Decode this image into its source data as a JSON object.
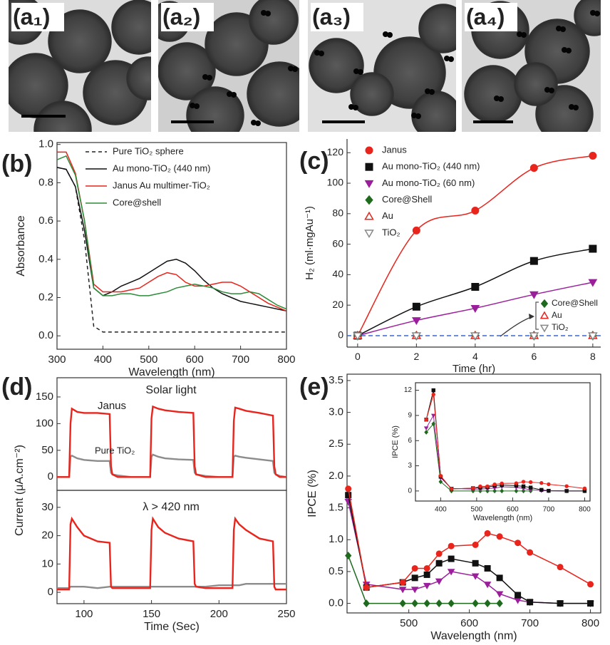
{
  "figure_labels": [
    "(a₁)",
    "(a₂)",
    "(a₃)",
    "(a₄)"
  ],
  "chart_data": [
    {
      "type": "line",
      "panel_label": "(b)",
      "xlabel": "Wavelength (nm)",
      "ylabel": "Absorbance",
      "xlim": [
        300,
        800
      ],
      "xticks": [
        300,
        400,
        500,
        600,
        700,
        800
      ],
      "ylim": [
        -0.07,
        1.01
      ],
      "yticks": [
        {
          "value": 0,
          "label": "0.0"
        },
        0.2,
        0.4,
        0.6,
        0.8,
        {
          "value": 1,
          "label": "1.0"
        }
      ],
      "legend_loc": "upper left",
      "x": [
        300,
        320,
        340,
        360,
        380,
        400,
        420,
        440,
        460,
        480,
        500,
        520,
        540,
        560,
        580,
        600,
        620,
        640,
        660,
        680,
        700,
        720,
        740,
        760,
        780,
        800
      ],
      "series": [
        {
          "name": "Pure TiO₂ sphere",
          "color": "#222222",
          "dash": "dashed",
          "values": [
            0.88,
            0.87,
            0.78,
            0.5,
            0.05,
            0.02,
            0.02,
            0.02,
            0.02,
            0.02,
            0.02,
            0.02,
            0.02,
            0.02,
            0.02,
            0.02,
            0.02,
            0.02,
            0.02,
            0.02,
            0.02,
            0.02,
            0.02,
            0.02,
            0.02,
            0.02
          ]
        },
        {
          "name": "Au mono-TiO₂ (440 nm)",
          "color": "#111111",
          "values": [
            0.88,
            0.87,
            0.78,
            0.55,
            0.25,
            0.21,
            0.23,
            0.26,
            0.28,
            0.3,
            0.33,
            0.36,
            0.39,
            0.4,
            0.38,
            0.34,
            0.29,
            0.25,
            0.22,
            0.2,
            0.18,
            0.17,
            0.16,
            0.15,
            0.14,
            0.13
          ]
        },
        {
          "name": "Janus Au multimer-TiO₂",
          "color": "#e8241c",
          "values": [
            0.96,
            0.96,
            0.85,
            0.6,
            0.27,
            0.23,
            0.23,
            0.23,
            0.24,
            0.25,
            0.28,
            0.31,
            0.33,
            0.32,
            0.28,
            0.26,
            0.26,
            0.27,
            0.28,
            0.28,
            0.26,
            0.23,
            0.2,
            0.17,
            0.15,
            0.13
          ]
        },
        {
          "name": "Core@shell",
          "color": "#2e8b3a",
          "values": [
            0.92,
            0.94,
            0.84,
            0.6,
            0.25,
            0.21,
            0.21,
            0.22,
            0.22,
            0.21,
            0.21,
            0.22,
            0.23,
            0.25,
            0.26,
            0.27,
            0.26,
            0.25,
            0.23,
            0.22,
            0.22,
            0.23,
            0.22,
            0.19,
            0.16,
            0.14
          ]
        }
      ]
    },
    {
      "type": "scatter",
      "panel_label": "(c)",
      "xlabel": "Time (hr)",
      "ylabel": "H₂ (ml·mgAu⁻¹)",
      "xlim": [
        -0.36,
        8.27
      ],
      "xticks": [
        0,
        2,
        4,
        6,
        8
      ],
      "ylim": [
        -7.5,
        129
      ],
      "yticks": [
        0,
        20,
        40,
        60,
        80,
        100,
        120
      ],
      "legend_loc": "upper left",
      "reference_line": {
        "value": 0,
        "color": "#3a63d6"
      },
      "annotations": [
        "Core@Shell",
        "Au",
        "TiO₂"
      ],
      "x": [
        0,
        2,
        4,
        6,
        8
      ],
      "series": [
        {
          "name": "Janus",
          "color": "#e8241c",
          "marker": "circle",
          "fit": true,
          "values": [
            0,
            69,
            82,
            110,
            118
          ]
        },
        {
          "name": "Au mono-TiO₂ (440 nm)",
          "color": "#111111",
          "marker": "square",
          "fit": true,
          "values": [
            0,
            19,
            32,
            49,
            57
          ]
        },
        {
          "name": "Au mono-TiO₂ (60 nm)",
          "color": "#9b1f9b",
          "marker": "triangle-down",
          "fit": true,
          "values": [
            0,
            10,
            18,
            27,
            35
          ]
        },
        {
          "name": "Core@Shell",
          "color": "#1e6b1e",
          "marker": "diamond",
          "values": [
            0,
            0,
            0,
            0,
            0
          ]
        },
        {
          "name": "Au",
          "color": "#e8241c",
          "marker": "triangle-up-open",
          "values": [
            0,
            0,
            0,
            0,
            0
          ]
        },
        {
          "name": "TiO₂",
          "color": "#888888",
          "marker": "triangle-down-open",
          "values": [
            0,
            0,
            0,
            0,
            0
          ]
        }
      ]
    },
    {
      "type": "line",
      "panel_label": "(d)",
      "ylabel": "Current (μA.cm⁻²)",
      "annotation": "Solar light",
      "xlim": [
        80,
        250
      ],
      "ylim": [
        -25,
        186
      ],
      "yticks": [
        0,
        50,
        100,
        150
      ],
      "x": [
        80,
        85,
        89,
        90,
        91,
        95,
        100,
        110,
        119,
        120,
        121,
        125,
        135,
        145,
        149,
        150,
        151,
        155,
        160,
        170,
        181,
        182,
        183,
        190,
        200,
        210,
        211,
        212,
        215,
        220,
        230,
        240,
        241,
        242,
        245,
        250
      ],
      "series": [
        {
          "name": "Pure TiO₂",
          "color": "#8c8c8c",
          "values": [
            0,
            0,
            0,
            38,
            40,
            35,
            32,
            30,
            30,
            8,
            5,
            3,
            0,
            0,
            0,
            38,
            42,
            38,
            35,
            33,
            32,
            8,
            5,
            2,
            0,
            0,
            38,
            40,
            38,
            36,
            33,
            30,
            8,
            5,
            2,
            0
          ]
        },
        {
          "name": "Janus",
          "color": "#e8241c",
          "values": [
            0,
            0,
            0,
            100,
            128,
            122,
            120,
            120,
            118,
            20,
            5,
            0,
            0,
            0,
            0,
            110,
            132,
            128,
            125,
            122,
            120,
            20,
            5,
            0,
            0,
            0,
            105,
            130,
            128,
            124,
            120,
            115,
            20,
            5,
            0,
            0
          ]
        }
      ]
    },
    {
      "type": "line",
      "xlabel": "Time (Sec)",
      "annotation": "λ > 420 nm",
      "xlim": [
        80,
        250
      ],
      "xticks": [
        100,
        150,
        200,
        250
      ],
      "ylim": [
        -4,
        36
      ],
      "yticks": [
        0,
        10,
        20,
        30
      ],
      "x": [
        80,
        85,
        89,
        90,
        91,
        95,
        100,
        110,
        119,
        120,
        121,
        125,
        135,
        145,
        149,
        150,
        151,
        155,
        160,
        170,
        181,
        182,
        183,
        190,
        200,
        210,
        211,
        212,
        215,
        220,
        230,
        240,
        241,
        242,
        245,
        250
      ],
      "series": [
        {
          "color": "#8c8c8c",
          "values": [
            1.5,
            1.5,
            1.5,
            2,
            2,
            2,
            2,
            1.5,
            2,
            2,
            2,
            2,
            2,
            2,
            2,
            2,
            2,
            2,
            2,
            2,
            2,
            2,
            2,
            2,
            2.5,
            2.5,
            2.5,
            2.5,
            2.5,
            3,
            3,
            3,
            3,
            3,
            3,
            3
          ]
        },
        {
          "color": "#e8241c",
          "values": [
            1,
            1,
            1,
            24,
            26,
            23,
            20,
            18,
            17.5,
            2,
            1.5,
            1.5,
            1.5,
            1.5,
            1.5,
            22,
            26,
            23,
            21,
            19,
            18,
            3,
            2,
            1.5,
            1.5,
            1.5,
            22,
            26,
            24,
            22,
            19,
            18,
            2,
            1,
            1,
            1
          ]
        }
      ]
    },
    {
      "type": "line",
      "panel_label": "(e)",
      "xlabel": "Wavelength (nm)",
      "ylabel": "IPCE (%)",
      "xlim": [
        398,
        817
      ],
      "xticks": [
        500,
        600,
        700,
        800
      ],
      "ylim": [
        -0.15,
        3.6
      ],
      "yticks": [
        {
          "value": 0,
          "label": "0.0"
        },
        0.5,
        {
          "value": 1,
          "label": "1.0"
        },
        1.5,
        {
          "value": 2,
          "label": "2.0"
        },
        2.5,
        {
          "value": 3,
          "label": "3.0"
        },
        3.5
      ],
      "x": [
        400,
        430,
        490,
        510,
        530,
        550,
        570,
        610,
        630,
        650,
        680,
        700,
        750,
        800
      ],
      "series": [
        {
          "color": "#1e6b1e",
          "marker": "diamond",
          "values": [
            0.75,
            0,
            0,
            0,
            0,
            0,
            0,
            0,
            0,
            0,
            null,
            null,
            null,
            null
          ]
        },
        {
          "color": "#9b1f9b",
          "marker": "triangle-down",
          "values": [
            1.6,
            0.3,
            0.22,
            0.22,
            0.28,
            0.35,
            0.5,
            0.43,
            0.3,
            0.15,
            0.05,
            0.02,
            0,
            0
          ]
        },
        {
          "color": "#111111",
          "marker": "square",
          "values": [
            1.7,
            0.25,
            0.33,
            0.4,
            0.45,
            0.63,
            0.7,
            0.63,
            0.55,
            0.4,
            0.13,
            0.02,
            0,
            0
          ]
        },
        {
          "color": "#e8241c",
          "marker": "circle",
          "values": [
            1.8,
            0.25,
            0.33,
            0.55,
            0.55,
            0.78,
            0.9,
            0.92,
            1.1,
            1.05,
            0.95,
            0.8,
            0.57,
            0.3
          ]
        }
      ]
    },
    {
      "type": "line",
      "xlabel": "Wavelength (nm)",
      "ylabel": "IPCE (%)",
      "xlim": [
        330,
        815
      ],
      "xticks": [
        400,
        500,
        600,
        700,
        800
      ],
      "ylim": [
        -1.2,
        12.9
      ],
      "yticks": [
        0,
        3,
        6,
        9,
        12
      ],
      "x": [
        360,
        380,
        400,
        430,
        490,
        510,
        530,
        550,
        570,
        610,
        630,
        650,
        680,
        700,
        750,
        800
      ],
      "series": [
        {
          "color": "#1e6b1e",
          "marker": "diamond",
          "values": [
            7,
            8,
            1.1,
            0,
            0,
            0,
            0,
            0,
            0,
            0,
            0,
            0,
            null,
            null,
            null,
            null
          ]
        },
        {
          "color": "#9b1f9b",
          "marker": "triangle-down",
          "values": [
            7.5,
            9,
            1.6,
            0.3,
            0.22,
            0.22,
            0.28,
            0.35,
            0.5,
            0.43,
            0.3,
            0.15,
            0.05,
            0.02,
            0,
            0
          ]
        },
        {
          "color": "#111111",
          "marker": "square",
          "values": [
            8.5,
            12,
            1.7,
            0.25,
            0.33,
            0.4,
            0.45,
            0.63,
            0.7,
            0.63,
            0.55,
            0.4,
            0.13,
            0.02,
            0,
            0
          ]
        },
        {
          "color": "#e8241c",
          "marker": "circle",
          "values": [
            8.5,
            11.5,
            1.8,
            0.25,
            0.33,
            0.55,
            0.55,
            0.78,
            0.9,
            0.92,
            1.1,
            1.05,
            0.95,
            0.8,
            0.57,
            0.3
          ]
        }
      ]
    }
  ]
}
